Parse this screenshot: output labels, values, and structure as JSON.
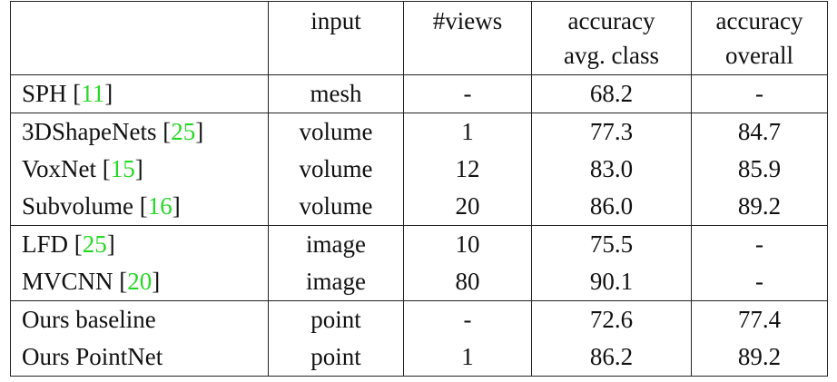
{
  "table": {
    "headers": [
      {
        "line1": "",
        "line2": ""
      },
      {
        "line1": "input",
        "line2": ""
      },
      {
        "line1": "#views",
        "line2": ""
      },
      {
        "line1": "accuracy",
        "line2": "avg. class"
      },
      {
        "line1": "accuracy",
        "line2": "overall"
      }
    ],
    "rows": [
      {
        "method": "SPH ",
        "ref_open": "[",
        "ref": "11",
        "ref_close": "]",
        "input": "mesh",
        "views": "-",
        "avg_class": "68.2",
        "overall": "-",
        "avg_bold": false,
        "overall_bold": false
      },
      {
        "method": "3DShapeNets ",
        "ref_open": "[",
        "ref": "25",
        "ref_close": "]",
        "input": "volume",
        "views": "1",
        "avg_class": "77.3",
        "overall": "84.7",
        "avg_bold": false,
        "overall_bold": false
      },
      {
        "method": "VoxNet ",
        "ref_open": "[",
        "ref": "15",
        "ref_close": "]",
        "input": "volume",
        "views": "12",
        "avg_class": "83.0",
        "overall": "85.9",
        "avg_bold": false,
        "overall_bold": false
      },
      {
        "method": "Subvolume ",
        "ref_open": "[",
        "ref": "16",
        "ref_close": "]",
        "input": "volume",
        "views": "20",
        "avg_class": "86.0",
        "overall": "89.2",
        "avg_bold": false,
        "overall_bold": true
      },
      {
        "method": "LFD ",
        "ref_open": "[",
        "ref": "25",
        "ref_close": "]",
        "input": "image",
        "views": "10",
        "avg_class": "75.5",
        "overall": "-",
        "avg_bold": false,
        "overall_bold": false
      },
      {
        "method": "MVCNN ",
        "ref_open": "[",
        "ref": "20",
        "ref_close": "]",
        "input": "image",
        "views": "80",
        "avg_class": "90.1",
        "overall": "-",
        "avg_bold": true,
        "overall_bold": false
      },
      {
        "method": "Ours baseline",
        "ref_open": "",
        "ref": "",
        "ref_close": "",
        "input": "point",
        "views": "-",
        "avg_class": "72.6",
        "overall": "77.4",
        "avg_bold": false,
        "overall_bold": false
      },
      {
        "method": "Ours PointNet",
        "ref_open": "",
        "ref": "",
        "ref_close": "",
        "input": "point",
        "views": "1",
        "avg_class": "86.2",
        "overall": "89.2",
        "avg_bold": false,
        "overall_bold": true
      }
    ]
  },
  "colors": {
    "citation": "#26d826",
    "rule": "#222222",
    "text": "#111111"
  }
}
